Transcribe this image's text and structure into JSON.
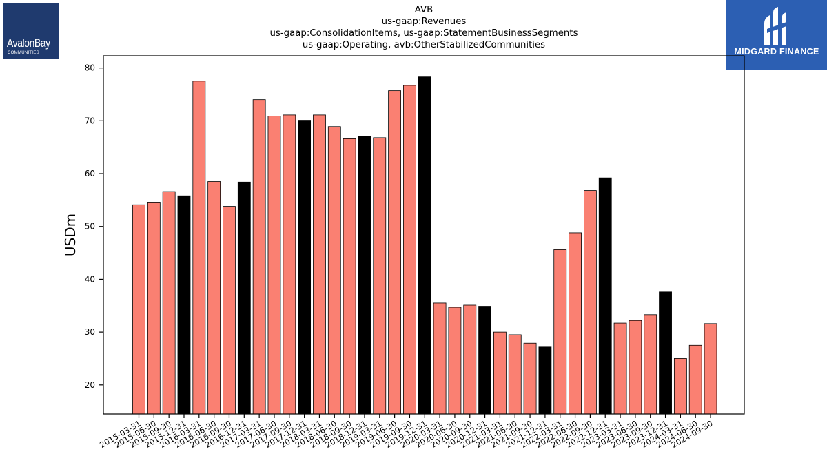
{
  "title_lines": [
    "AVB",
    "us-gaap:Revenues",
    "us-gaap:ConsolidationItems, us-gaap:StatementBusinessSegments",
    "us-gaap:Operating, avb:OtherStabilizedCommunities"
  ],
  "logos": {
    "left_name": "AvalonBay",
    "left_sub": "COMMUNITIES",
    "right_name": "MIDGARD FINANCE"
  },
  "colors": {
    "bar_default": "#fa8072",
    "bar_highlight": "#000000",
    "left_logo_bg": "#1f3a6e",
    "right_logo_bg": "#2c5fb3"
  },
  "chart_data": {
    "type": "bar",
    "title": "AVB\nus-gaap:Revenues\nus-gaap:ConsolidationItems, us-gaap:StatementBusinessSegments\nus-gaap:Operating, avb:OtherStabilizedCommunities",
    "xlabel": "",
    "ylabel": "USDm",
    "ylim": [
      14.5,
      82.3
    ],
    "yticks": [
      20,
      30,
      40,
      50,
      60,
      70,
      80
    ],
    "grid": false,
    "categories": [
      "2015-03-31",
      "2015-06-30",
      "2015-09-30",
      "2015-12-31",
      "2016-03-31",
      "2016-06-30",
      "2016-09-30",
      "2016-12-31",
      "2017-03-31",
      "2017-06-30",
      "2017-09-30",
      "2017-12-31",
      "2018-03-31",
      "2018-06-30",
      "2018-09-30",
      "2018-12-31",
      "2019-03-31",
      "2019-06-30",
      "2019-09-30",
      "2019-12-31",
      "2020-03-31",
      "2020-06-30",
      "2020-09-30",
      "2020-12-31",
      "2021-03-31",
      "2021-06-30",
      "2021-09-30",
      "2021-12-31",
      "2022-03-31",
      "2022-06-30",
      "2022-09-30",
      "2022-12-31",
      "2023-03-31",
      "2023-06-30",
      "2023-09-30",
      "2023-12-31",
      "2024-03-31",
      "2024-06-30",
      "2024-09-30"
    ],
    "values": [
      54.1,
      54.6,
      56.6,
      55.8,
      77.5,
      58.5,
      53.8,
      58.4,
      74.0,
      70.9,
      71.1,
      70.1,
      71.1,
      68.9,
      66.6,
      67.0,
      66.8,
      75.7,
      76.7,
      78.3,
      35.5,
      34.7,
      35.1,
      34.9,
      30.0,
      29.5,
      27.9,
      27.3,
      45.6,
      48.8,
      56.8,
      59.2,
      31.7,
      32.2,
      33.3,
      37.6,
      25.0,
      27.5,
      31.6
    ],
    "highlight_indices": [
      3,
      7,
      11,
      15,
      19,
      23,
      27,
      31,
      35
    ]
  }
}
